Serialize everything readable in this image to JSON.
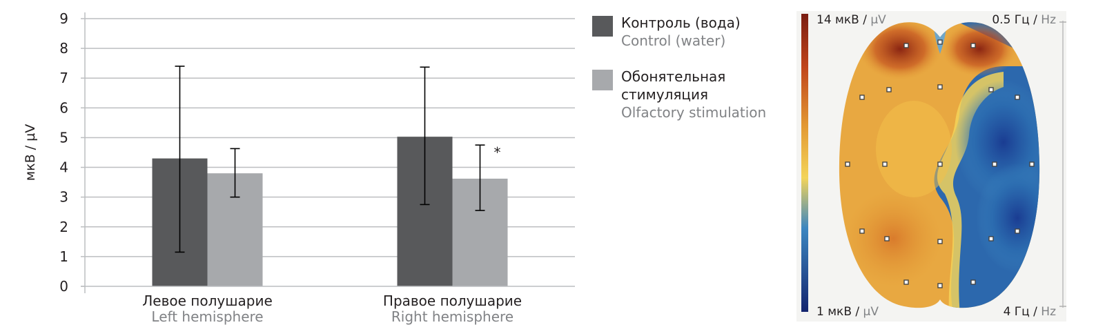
{
  "chart_data": {
    "type": "bar",
    "ylabel": "мкВ / µV",
    "ylim": [
      0,
      9
    ],
    "yticks": [
      0,
      1,
      2,
      3,
      4,
      5,
      6,
      7,
      8,
      9
    ],
    "grid": true,
    "categories": [
      {
        "ru": "Левое полушарие",
        "en": "Left hemisphere"
      },
      {
        "ru": "Правое полушарие",
        "en": "Right hemisphere"
      }
    ],
    "series": [
      {
        "name_ru": "Контроль (вода)",
        "name_en": "Control (water)",
        "color": "#58595b",
        "values": [
          4.3,
          5.03
        ],
        "error_low": [
          1.15,
          2.75
        ],
        "error_high": [
          7.4,
          7.37
        ]
      },
      {
        "name_ru": "Обонятельная стимуляция",
        "name_en": "Olfactory stimulation",
        "color": "#a7a9ac",
        "values": [
          3.8,
          3.62
        ],
        "error_low": [
          3.0,
          2.55
        ],
        "error_high": [
          4.63,
          4.75
        ]
      }
    ],
    "annotations": [
      {
        "text": "*",
        "category_index": 1,
        "series_index": 1
      }
    ],
    "legend_position": "right"
  },
  "legend": {
    "items": [
      {
        "ru": "Контроль (вода)",
        "en": "Control (water)",
        "color": "#58595b"
      },
      {
        "ru": "Обонятельная стимуляция",
        "en": "Olfactory stimulation",
        "color": "#a7a9ac"
      }
    ]
  },
  "topomap": {
    "scale_max": "14 мкВ",
    "scale_max_unit": "µV",
    "scale_min": "1 мкВ",
    "scale_min_unit": "µV",
    "freq_low": "0.5 Гц",
    "freq_low_unit": "Hz",
    "freq_high": "4 Гц",
    "freq_high_unit": "Hz",
    "colormap": [
      "#7a1d12",
      "#c0461c",
      "#e39a34",
      "#f3c548",
      "#2e6fb0",
      "#1b3a8c"
    ]
  }
}
